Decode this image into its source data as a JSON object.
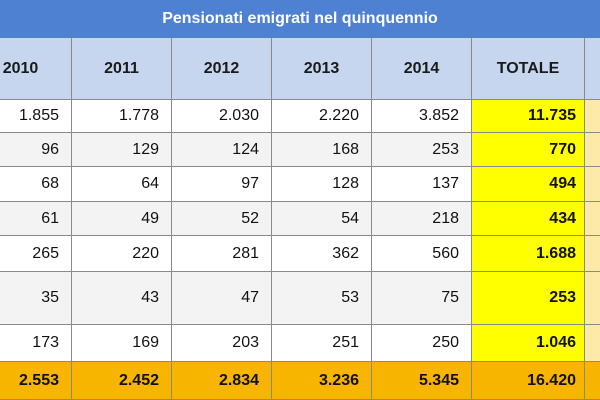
{
  "title": "Pensionati emigrati nel quinquennio",
  "table": {
    "header": [
      "2010",
      "2011",
      "2012",
      "2013",
      "2014",
      "TOTALE"
    ],
    "rows": [
      [
        "1.855",
        "1.778",
        "2.030",
        "2.220",
        "3.852",
        "11.735"
      ],
      [
        "96",
        "129",
        "124",
        "168",
        "253",
        "770"
      ],
      [
        "68",
        "64",
        "97",
        "128",
        "137",
        "494"
      ],
      [
        "61",
        "49",
        "52",
        "54",
        "218",
        "434"
      ],
      [
        "265",
        "220",
        "281",
        "362",
        "560",
        "1.688"
      ],
      [
        "35",
        "43",
        "47",
        "53",
        "75",
        "253"
      ],
      [
        "173",
        "169",
        "203",
        "251",
        "250",
        "1.046"
      ]
    ],
    "total_row": [
      "2.553",
      "2.452",
      "2.834",
      "3.236",
      "5.345",
      "16.420"
    ]
  }
}
